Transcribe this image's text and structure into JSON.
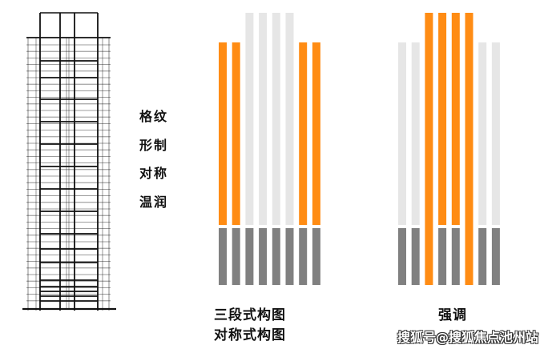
{
  "features": [
    "格纹",
    "形制",
    "对称",
    "温润"
  ],
  "captions": {
    "left_line1": "三段式构图",
    "left_line2": "对称式构图",
    "right": "强调"
  },
  "watermark": "搜狐号@搜狐焦点池州站",
  "colors": {
    "accent": "#FF8C14",
    "light": "#E6E6E6",
    "base": "#808080",
    "sketch": "#111111"
  },
  "diagrams": [
    {
      "name": "three-part-symmetric",
      "columns": [
        {
          "top": "orange",
          "bottom": "gray",
          "tall": false
        },
        {
          "top": "orange",
          "bottom": "gray",
          "tall": false
        },
        {
          "top": "light",
          "bottom": "gray",
          "tall": true
        },
        {
          "top": "light",
          "bottom": "gray",
          "tall": true
        },
        {
          "top": "light",
          "bottom": "gray",
          "tall": true
        },
        {
          "top": "light",
          "bottom": "gray",
          "tall": true
        },
        {
          "top": "orange",
          "bottom": "gray",
          "tall": false
        },
        {
          "top": "orange",
          "bottom": "gray",
          "tall": false
        }
      ]
    },
    {
      "name": "emphasis",
      "columns": [
        {
          "top": "light",
          "bottom": "gray",
          "tall": false
        },
        {
          "top": "light",
          "bottom": "gray",
          "tall": false
        },
        {
          "top": "orange",
          "bottom": "orange",
          "tall": true,
          "continuous": true
        },
        {
          "top": "orange",
          "bottom": "gray",
          "tall": true
        },
        {
          "top": "orange",
          "bottom": "gray",
          "tall": true
        },
        {
          "top": "orange",
          "bottom": "orange",
          "tall": true,
          "continuous": true
        },
        {
          "top": "light",
          "bottom": "gray",
          "tall": false
        },
        {
          "top": "light",
          "bottom": "gray",
          "tall": false
        }
      ]
    }
  ]
}
